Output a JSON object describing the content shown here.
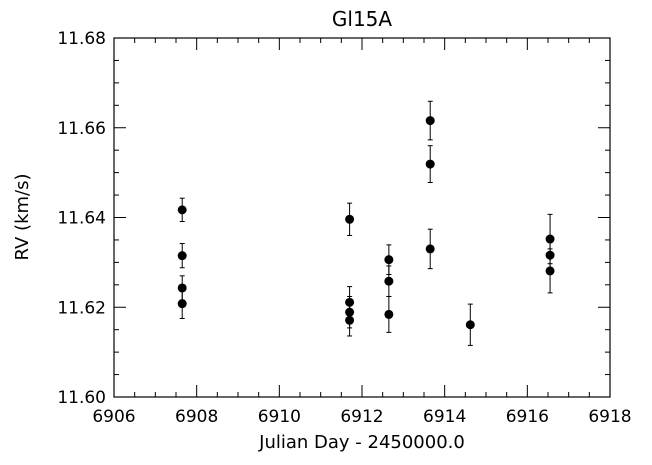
{
  "chart_data": {
    "type": "scatter",
    "title": "Gl15A",
    "xlabel": "Julian Day - 2450000.0",
    "ylabel": "RV (km/s)",
    "xlim": [
      6906,
      6918
    ],
    "ylim": [
      11.6,
      11.68
    ],
    "x_ticks": [
      "6906",
      "6908",
      "6910",
      "6912",
      "6914",
      "6916",
      "6918"
    ],
    "y_ticks": [
      "11.60",
      "11.62",
      "11.64",
      "11.66",
      "11.68"
    ],
    "grid": false,
    "legend": "none",
    "marker_color": "#000000",
    "points": [
      {
        "x": 6907.65,
        "y": 11.6417,
        "err": 0.0026
      },
      {
        "x": 6907.65,
        "y": 11.6315,
        "err": 0.0027
      },
      {
        "x": 6907.65,
        "y": 11.6243,
        "err": 0.0027
      },
      {
        "x": 6907.65,
        "y": 11.6208,
        "err": 0.0033
      },
      {
        "x": 6911.7,
        "y": 11.6396,
        "err": 0.0036
      },
      {
        "x": 6911.7,
        "y": 11.6211,
        "err": 0.0035
      },
      {
        "x": 6911.7,
        "y": 11.6189,
        "err": 0.0035
      },
      {
        "x": 6911.7,
        "y": 11.6171,
        "err": 0.0035
      },
      {
        "x": 6912.65,
        "y": 11.6306,
        "err": 0.0033
      },
      {
        "x": 6912.65,
        "y": 11.6258,
        "err": 0.0034
      },
      {
        "x": 6912.65,
        "y": 11.6184,
        "err": 0.004
      },
      {
        "x": 6913.65,
        "y": 11.6616,
        "err": 0.0043
      },
      {
        "x": 6913.65,
        "y": 11.6519,
        "err": 0.0041
      },
      {
        "x": 6913.65,
        "y": 11.633,
        "err": 0.0044
      },
      {
        "x": 6914.62,
        "y": 11.6161,
        "err": 0.0046
      },
      {
        "x": 6916.55,
        "y": 11.6352,
        "err": 0.0055
      },
      {
        "x": 6916.55,
        "y": 11.6316,
        "err": 0.0038
      },
      {
        "x": 6916.55,
        "y": 11.6281,
        "err": 0.0049
      }
    ]
  }
}
